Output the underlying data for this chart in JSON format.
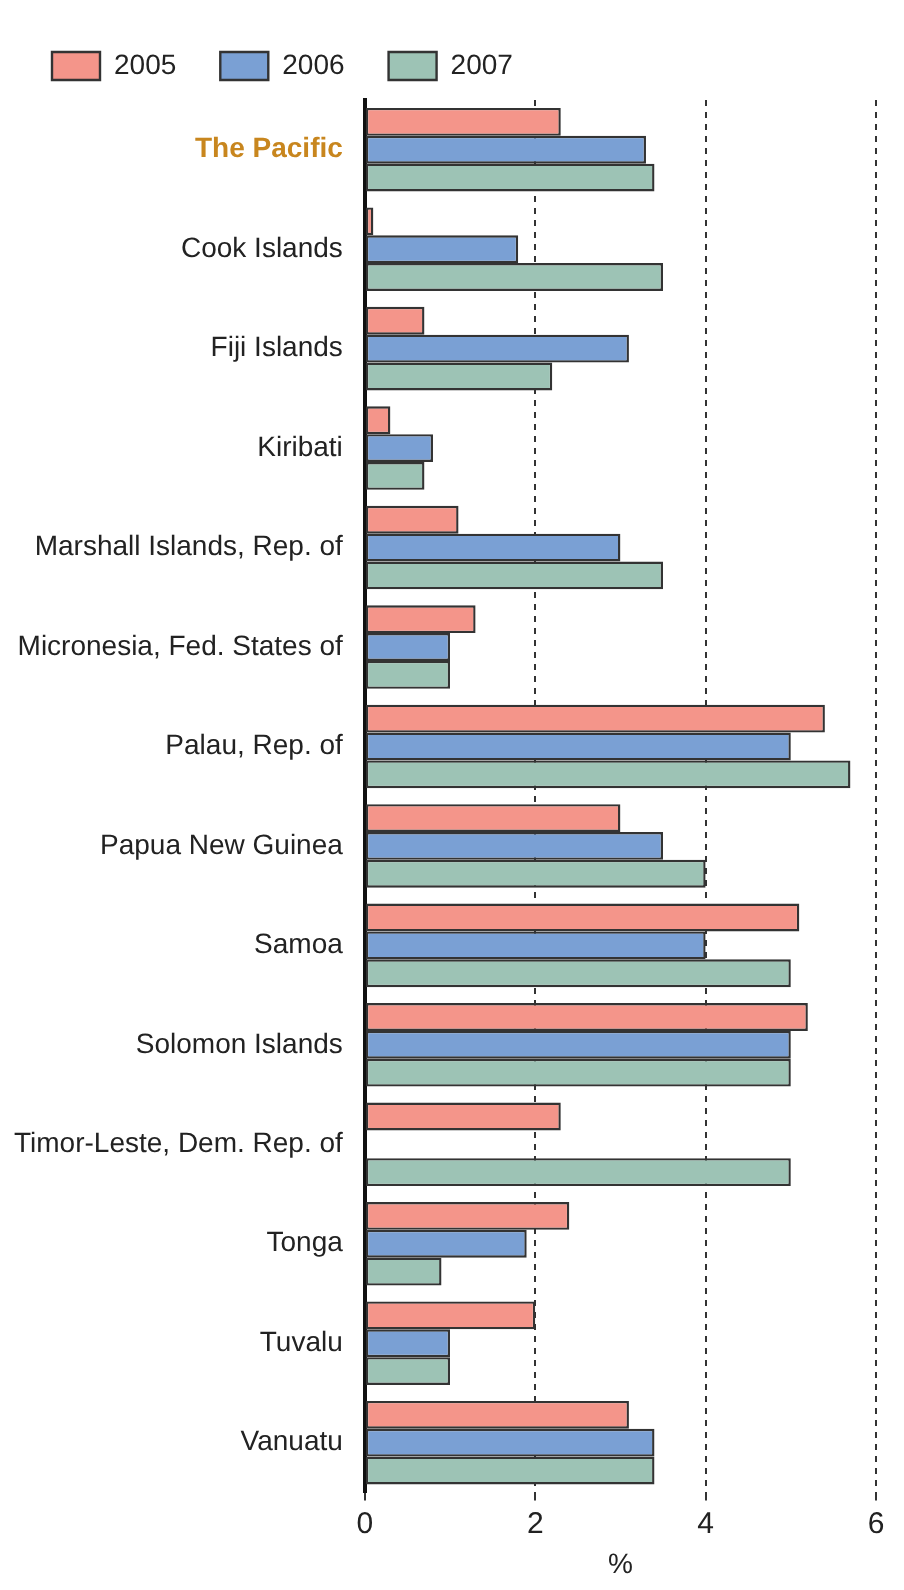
{
  "chart_data": {
    "type": "bar",
    "orientation": "horizontal",
    "xlabel": "%",
    "categories": [
      "The Pacific",
      "Cook Islands",
      "Fiji Islands",
      "Kiribati",
      "Marshall Islands, Rep. of",
      "Micronesia, Fed. States of",
      "Palau, Rep. of",
      "Papua New Guinea",
      "Samoa",
      "Solomon Islands",
      "Timor-Leste, Dem. Rep. of",
      "Tonga",
      "Tuvalu",
      "Vanuatu"
    ],
    "series": [
      {
        "name": "2005",
        "color": "#f4958a",
        "values": [
          2.3,
          0.1,
          0.7,
          0.3,
          1.1,
          1.3,
          5.4,
          3.0,
          5.1,
          5.2,
          2.3,
          2.4,
          2.0,
          3.1
        ]
      },
      {
        "name": "2006",
        "color": "#7aa0d4",
        "values": [
          3.3,
          1.8,
          3.1,
          0.8,
          3.0,
          1.0,
          5.0,
          3.5,
          4.0,
          5.0,
          null,
          1.9,
          1.0,
          3.4
        ]
      },
      {
        "name": "2007",
        "color": "#9dc3b5",
        "values": [
          3.4,
          3.5,
          2.2,
          0.7,
          3.5,
          1.0,
          5.7,
          4.0,
          5.0,
          5.0,
          5.0,
          0.9,
          1.0,
          3.4
        ]
      }
    ],
    "xlim": [
      0,
      6
    ],
    "xticks": [
      0,
      2,
      4,
      6
    ],
    "grid": "x",
    "legend": "top left"
  }
}
